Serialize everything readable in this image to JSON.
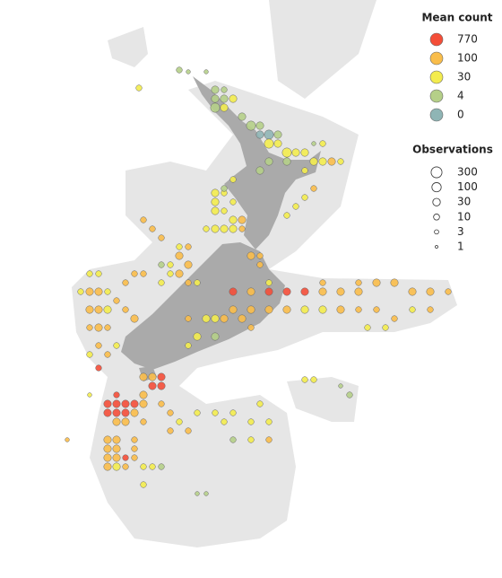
{
  "map_data": {
    "lonlim": [
      155.5,
      200.3
    ],
    "latlim": [
      -56,
      -30.4
    ],
    "legend": {
      "mean_title": "Mean count",
      "mean_levels": [
        {
          "value": 770,
          "color": "#f44e38"
        },
        {
          "value": 100,
          "color": "#f9bd4a"
        },
        {
          "value": 30,
          "color": "#f3ec4e"
        },
        {
          "value": 4,
          "color": "#b5cf88"
        },
        {
          "value": 0,
          "color": "#8fb5b5"
        }
      ],
      "obs_title": "Observations",
      "obs_levels": [
        300,
        100,
        30,
        10,
        3,
        1
      ]
    },
    "points": [
      [
        174.7,
        -34.4,
        4,
        30
      ],
      [
        175.5,
        -34.4,
        4,
        10
      ],
      [
        174.7,
        -34.8,
        4,
        30
      ],
      [
        175.5,
        -34.8,
        4,
        30
      ],
      [
        176.3,
        -34.8,
        30,
        30
      ],
      [
        174.7,
        -35.2,
        4,
        100
      ],
      [
        175.5,
        -35.2,
        30,
        30
      ],
      [
        177.1,
        -35.6,
        4,
        30
      ],
      [
        177.9,
        -36,
        4,
        100
      ],
      [
        178.7,
        -36,
        4,
        30
      ],
      [
        179.5,
        -36.4,
        0,
        100
      ],
      [
        178.7,
        -36.4,
        0,
        30
      ],
      [
        180.3,
        -36.4,
        4,
        30
      ],
      [
        179.5,
        -36.8,
        30,
        100
      ],
      [
        180.3,
        -36.8,
        30,
        30
      ],
      [
        181.1,
        -37.2,
        30,
        100
      ],
      [
        181.9,
        -37.2,
        30,
        30
      ],
      [
        182.7,
        -37.2,
        30,
        30
      ],
      [
        183.5,
        -36.8,
        4,
        3
      ],
      [
        184.3,
        -36.8,
        30,
        10
      ],
      [
        183.5,
        -37.6,
        30,
        30
      ],
      [
        184.3,
        -37.6,
        30,
        30
      ],
      [
        185.1,
        -37.6,
        100,
        30
      ],
      [
        185.9,
        -37.6,
        30,
        10
      ],
      [
        179.5,
        -37.6,
        4,
        30
      ],
      [
        178.7,
        -38,
        4,
        30
      ],
      [
        181.1,
        -37.6,
        4,
        30
      ],
      [
        182.7,
        -38,
        30,
        10
      ],
      [
        183.5,
        -38.8,
        100,
        10
      ],
      [
        182.7,
        -39.2,
        30,
        10
      ],
      [
        181.1,
        -40,
        30,
        10
      ],
      [
        181.9,
        -39.6,
        30,
        10
      ],
      [
        172.3,
        -33.6,
        4,
        3
      ],
      [
        173.9,
        -33.6,
        4,
        3
      ],
      [
        167.9,
        -34.32,
        30,
        10
      ],
      [
        171.5,
        -33.52,
        4,
        10
      ],
      [
        174.7,
        -39,
        30,
        30
      ],
      [
        175.5,
        -39,
        30,
        10
      ],
      [
        174.7,
        -39.4,
        30,
        30
      ],
      [
        176.3,
        -39.4,
        30,
        10
      ],
      [
        174.7,
        -39.8,
        30,
        30
      ],
      [
        175.5,
        -39.8,
        30,
        10
      ],
      [
        176.3,
        -40.2,
        30,
        30
      ],
      [
        177.1,
        -40.2,
        100,
        30
      ],
      [
        173.9,
        -40.6,
        30,
        10
      ],
      [
        174.7,
        -40.6,
        30,
        30
      ],
      [
        175.5,
        -40.6,
        30,
        30
      ],
      [
        176.3,
        -40.6,
        30,
        30
      ],
      [
        177.1,
        -40.6,
        100,
        10
      ],
      [
        168.3,
        -40.2,
        100,
        10
      ],
      [
        169.1,
        -40.6,
        100,
        10
      ],
      [
        169.9,
        -41,
        100,
        10
      ],
      [
        171.5,
        -41.4,
        30,
        10
      ],
      [
        172.3,
        -41.4,
        100,
        10
      ],
      [
        171.5,
        -41.8,
        100,
        30
      ],
      [
        172.3,
        -42.2,
        100,
        30
      ],
      [
        170.7,
        -42.2,
        30,
        10
      ],
      [
        169.9,
        -42.2,
        4,
        10
      ],
      [
        170.7,
        -42.6,
        30,
        10
      ],
      [
        171.5,
        -42.6,
        100,
        30
      ],
      [
        172.3,
        -43,
        100,
        10
      ],
      [
        173.1,
        -43,
        30,
        10
      ],
      [
        169.9,
        -43,
        30,
        10
      ],
      [
        176.3,
        -38.4,
        30,
        10
      ],
      [
        175.5,
        -38.8,
        4,
        10
      ],
      [
        177.9,
        -41.8,
        100,
        30
      ],
      [
        178.7,
        -41.8,
        100,
        10
      ],
      [
        178.7,
        -42.2,
        100,
        10
      ],
      [
        176.3,
        -43.4,
        770,
        30
      ],
      [
        177.9,
        -43.4,
        100,
        30
      ],
      [
        179.5,
        -43.4,
        770,
        30
      ],
      [
        181.1,
        -43.4,
        770,
        30
      ],
      [
        182.7,
        -43.4,
        770,
        30
      ],
      [
        184.3,
        -43.4,
        100,
        30
      ],
      [
        185.9,
        -43.4,
        100,
        30
      ],
      [
        187.5,
        -43.4,
        100,
        30
      ],
      [
        189.1,
        -43,
        100,
        30
      ],
      [
        190.7,
        -43,
        100,
        30
      ],
      [
        192.3,
        -43.4,
        100,
        30
      ],
      [
        193.9,
        -43.4,
        100,
        30
      ],
      [
        195.5,
        -43.4,
        100,
        10
      ],
      [
        176.3,
        -44.2,
        100,
        30
      ],
      [
        177.9,
        -44.2,
        100,
        30
      ],
      [
        179.5,
        -44.2,
        100,
        30
      ],
      [
        181.1,
        -44.2,
        100,
        30
      ],
      [
        182.7,
        -44.2,
        30,
        30
      ],
      [
        184.3,
        -44.2,
        30,
        30
      ],
      [
        185.9,
        -44.2,
        100,
        30
      ],
      [
        187.5,
        -44.2,
        100,
        10
      ],
      [
        189.1,
        -44.2,
        100,
        10
      ],
      [
        190.7,
        -44.6,
        100,
        10
      ],
      [
        192.3,
        -44.2,
        30,
        10
      ],
      [
        193.9,
        -44.2,
        100,
        10
      ],
      [
        177.1,
        -44.6,
        100,
        30
      ],
      [
        175.5,
        -44.6,
        100,
        30
      ],
      [
        174.7,
        -44.6,
        30,
        30
      ],
      [
        173.9,
        -44.6,
        30,
        30
      ],
      [
        179.5,
        -43,
        30,
        10
      ],
      [
        184.3,
        -43,
        100,
        10
      ],
      [
        187.5,
        -43,
        100,
        10
      ],
      [
        189.9,
        -45,
        30,
        10
      ],
      [
        188.3,
        -45,
        30,
        10
      ],
      [
        174.7,
        -45.4,
        4,
        30
      ],
      [
        173.1,
        -45.4,
        30,
        30
      ],
      [
        172.3,
        -45.8,
        30,
        10
      ],
      [
        172.3,
        -44.6,
        100,
        10
      ],
      [
        177.9,
        -45,
        100,
        10
      ],
      [
        163.5,
        -42.6,
        30,
        10
      ],
      [
        164.3,
        -42.6,
        30,
        10
      ],
      [
        163.5,
        -43.4,
        100,
        30
      ],
      [
        164.3,
        -43.4,
        100,
        30
      ],
      [
        165.1,
        -43.4,
        30,
        10
      ],
      [
        162.7,
        -43.4,
        30,
        10
      ],
      [
        163.5,
        -44.2,
        100,
        30
      ],
      [
        164.3,
        -44.2,
        100,
        30
      ],
      [
        165.1,
        -44.2,
        30,
        30
      ],
      [
        166.7,
        -44.2,
        100,
        10
      ],
      [
        163.5,
        -45,
        100,
        10
      ],
      [
        164.3,
        -45,
        100,
        30
      ],
      [
        165.1,
        -45,
        100,
        10
      ],
      [
        164.3,
        -45.8,
        100,
        10
      ],
      [
        165.9,
        -45.8,
        30,
        10
      ],
      [
        163.5,
        -46.2,
        30,
        10
      ],
      [
        164.3,
        -46.8,
        770,
        10
      ],
      [
        165.1,
        -46.2,
        100,
        10
      ],
      [
        166.7,
        -43,
        100,
        10
      ],
      [
        167.5,
        -42.6,
        100,
        10
      ],
      [
        168.3,
        -42.6,
        100,
        10
      ],
      [
        165.9,
        -43.8,
        100,
        10
      ],
      [
        167.5,
        -44.6,
        100,
        30
      ],
      [
        168.3,
        -47.2,
        100,
        30
      ],
      [
        169.1,
        -47.2,
        100,
        30
      ],
      [
        169.9,
        -47.2,
        770,
        30
      ],
      [
        169.1,
        -47.6,
        770,
        30
      ],
      [
        169.9,
        -47.6,
        770,
        30
      ],
      [
        168.3,
        -48,
        100,
        30
      ],
      [
        165.9,
        -48,
        770,
        10
      ],
      [
        165.1,
        -48.4,
        770,
        30
      ],
      [
        165.9,
        -48.4,
        770,
        30
      ],
      [
        166.7,
        -48.4,
        770,
        30
      ],
      [
        167.5,
        -48.4,
        770,
        30
      ],
      [
        168.3,
        -48.4,
        100,
        30
      ],
      [
        165.1,
        -48.8,
        770,
        30
      ],
      [
        165.9,
        -48.8,
        770,
        30
      ],
      [
        166.7,
        -48.8,
        770,
        30
      ],
      [
        167.5,
        -48.8,
        100,
        30
      ],
      [
        165.9,
        -49.2,
        100,
        30
      ],
      [
        166.7,
        -49.2,
        100,
        30
      ],
      [
        168.3,
        -49.2,
        100,
        10
      ],
      [
        165.1,
        -50,
        100,
        30
      ],
      [
        165.9,
        -50,
        100,
        30
      ],
      [
        167.5,
        -50,
        100,
        10
      ],
      [
        165.1,
        -50.4,
        100,
        30
      ],
      [
        165.9,
        -50.4,
        100,
        30
      ],
      [
        167.5,
        -50.4,
        100,
        10
      ],
      [
        165.1,
        -50.8,
        100,
        30
      ],
      [
        165.9,
        -50.8,
        100,
        30
      ],
      [
        166.7,
        -50.8,
        770,
        10
      ],
      [
        167.5,
        -50.8,
        100,
        10
      ],
      [
        165.1,
        -51.2,
        100,
        30
      ],
      [
        165.9,
        -51.2,
        30,
        30
      ],
      [
        166.7,
        -51.2,
        100,
        10
      ],
      [
        168.3,
        -51.2,
        30,
        10
      ],
      [
        169.1,
        -51.2,
        30,
        10
      ],
      [
        169.9,
        -51.2,
        4,
        10
      ],
      [
        168.3,
        -52,
        30,
        10
      ],
      [
        169.9,
        -48.4,
        100,
        10
      ],
      [
        170.7,
        -48.8,
        100,
        10
      ],
      [
        171.5,
        -49.2,
        30,
        10
      ],
      [
        172.3,
        -49.6,
        100,
        10
      ],
      [
        170.7,
        -49.6,
        100,
        10
      ],
      [
        173.1,
        -48.8,
        30,
        10
      ],
      [
        174.7,
        -48.8,
        30,
        10
      ],
      [
        175.5,
        -49.2,
        30,
        10
      ],
      [
        176.3,
        -48.8,
        30,
        10
      ],
      [
        177.9,
        -49.2,
        30,
        10
      ],
      [
        179.5,
        -49.2,
        30,
        10
      ],
      [
        177.9,
        -50,
        30,
        10
      ],
      [
        179.5,
        -50,
        100,
        10
      ],
      [
        178.7,
        -48.4,
        30,
        10
      ],
      [
        176.3,
        -50,
        4,
        10
      ],
      [
        173.9,
        -52.4,
        4,
        3
      ],
      [
        173.1,
        -52.4,
        4,
        3
      ],
      [
        161.5,
        -50,
        100,
        3
      ],
      [
        163.5,
        -48,
        30,
        3
      ],
      [
        182.7,
        -47.32,
        30,
        10
      ],
      [
        183.5,
        -47.32,
        30,
        10
      ],
      [
        186.7,
        -48,
        4,
        10
      ],
      [
        185.9,
        -47.6,
        4,
        3
      ]
    ]
  }
}
